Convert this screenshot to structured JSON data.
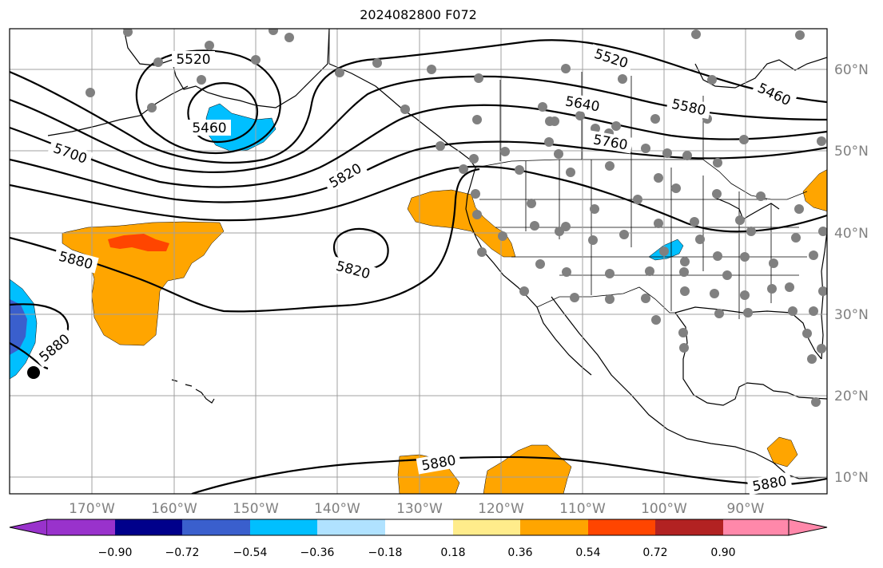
{
  "title": "2024082800 F072",
  "lon_labels": [
    "170°W",
    "160°W",
    "150°W",
    "140°W",
    "130°W",
    "120°W",
    "110°W",
    "100°W",
    "90°W"
  ],
  "lat_labels": [
    "60°N",
    "50°N",
    "40°N",
    "30°N",
    "20°N",
    "10°N"
  ],
  "contour_labels": [
    "5520",
    "5460",
    "5700",
    "5820",
    "5880",
    "5820",
    "5880",
    "5640",
    "5580",
    "5760",
    "5520",
    "5460",
    "5880",
    "5880"
  ],
  "colorbar": {
    "ticks": [
      "−0.90",
      "−0.72",
      "−0.54",
      "−0.36",
      "−0.18",
      "0.18",
      "0.36",
      "0.54",
      "0.72",
      "0.90"
    ],
    "colors": [
      "#9932cc",
      "#00008b",
      "#3a5fcd",
      "#00bfff",
      "#b0e2ff",
      "#ffffff",
      "#ffec8b",
      "#ffa500",
      "#ff4500",
      "#b22222",
      "#ff88aa"
    ]
  },
  "colors": {
    "orange": "#ffa500",
    "red": "#ff4500",
    "cyan": "#00bfff",
    "blue": "#3a5fcd",
    "station": "#808080"
  }
}
